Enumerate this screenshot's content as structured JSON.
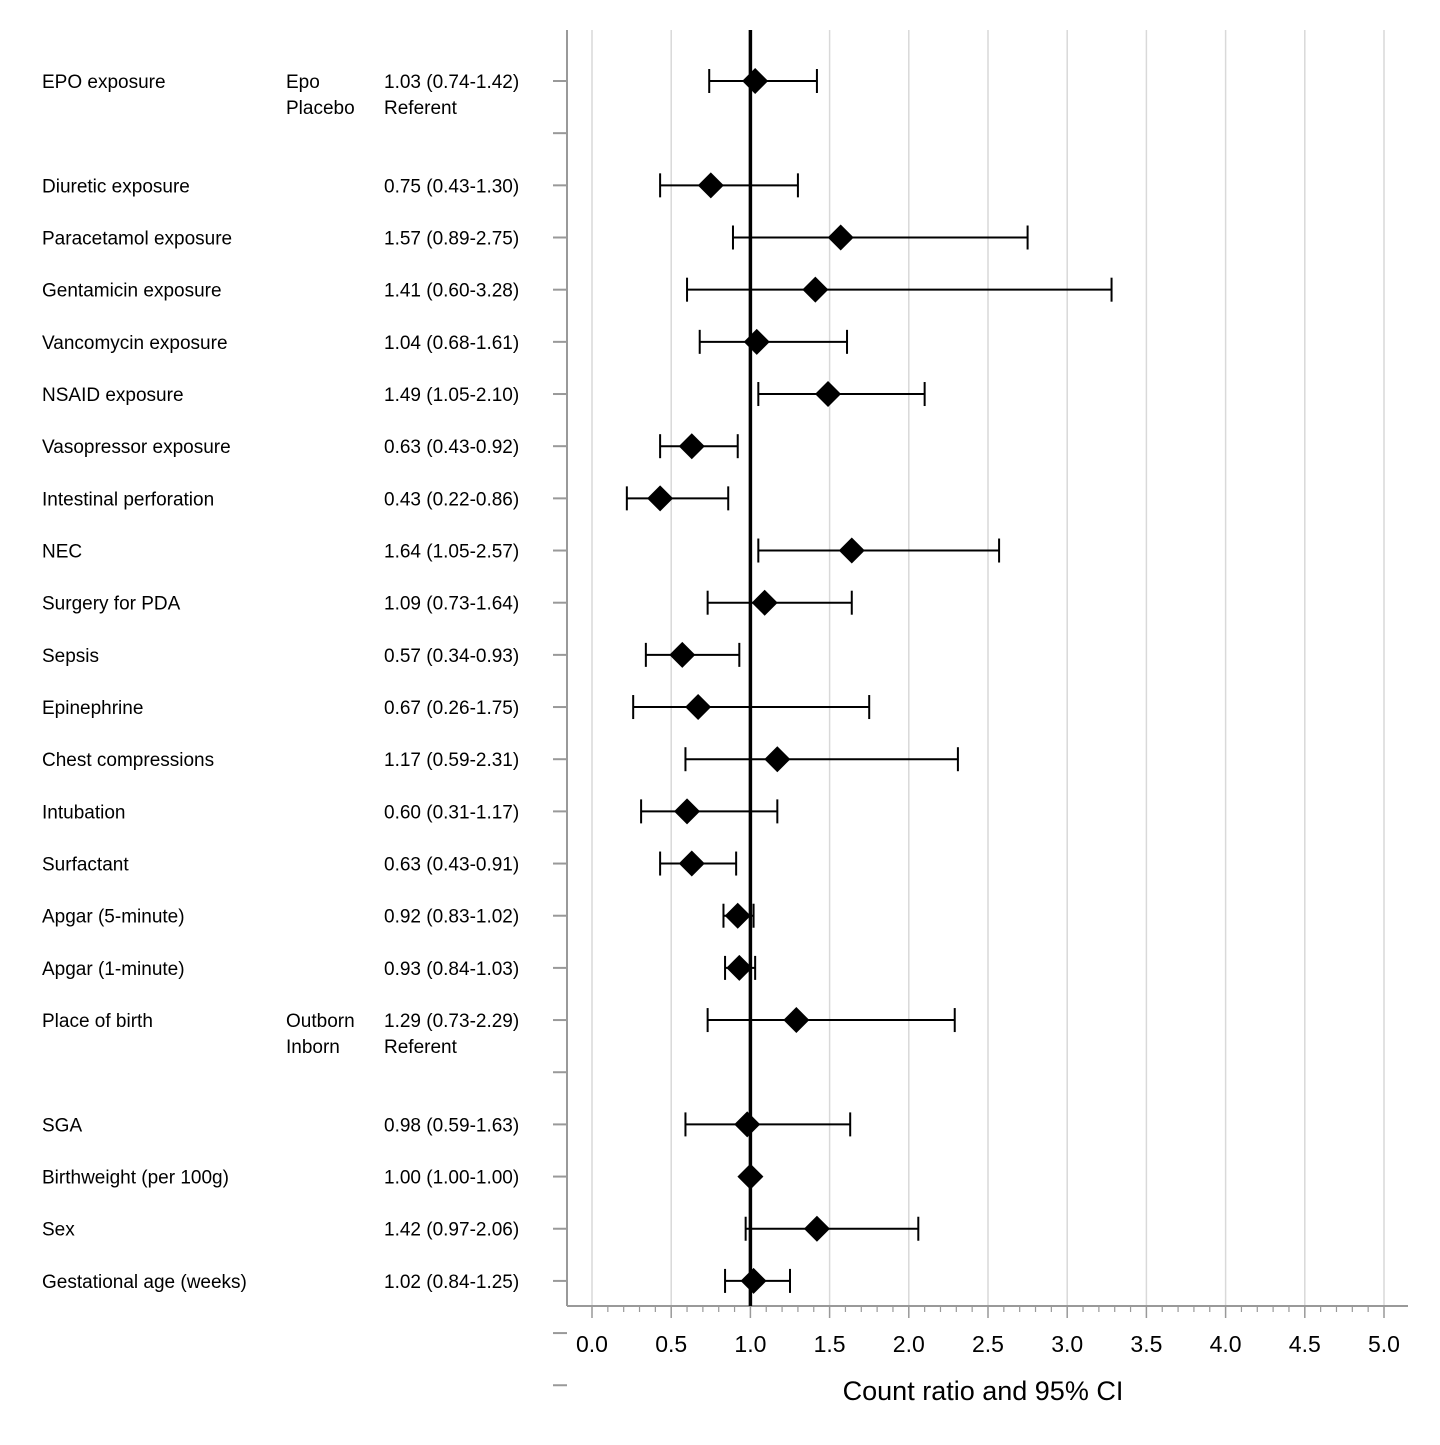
{
  "chart_data": {
    "type": "forest",
    "xlabel": "Count ratio and 95% CI",
    "xlim": [
      0,
      5
    ],
    "x_ticks": [
      "0.0",
      "0.5",
      "1.0",
      "1.5",
      "2.0",
      "2.5",
      "3.0",
      "3.5",
      "4.0",
      "4.5",
      "5.0"
    ],
    "reference_line": 1.0,
    "grid": "vertical",
    "rows": [
      {
        "label": "EPO exposure",
        "levels": [
          "Epo",
          "Placebo"
        ],
        "estimate_text": "1.03 (0.74-1.42)",
        "referent_text": "Referent",
        "value": 1.03,
        "lower": 0.74,
        "upper": 1.42
      },
      {
        "label": "Diuretic exposure",
        "estimate_text": "0.75 (0.43-1.30)",
        "value": 0.75,
        "lower": 0.43,
        "upper": 1.3
      },
      {
        "label": "Paracetamol exposure",
        "estimate_text": "1.57 (0.89-2.75)",
        "value": 1.57,
        "lower": 0.89,
        "upper": 2.75
      },
      {
        "label": "Gentamicin exposure",
        "estimate_text": "1.41 (0.60-3.28)",
        "value": 1.41,
        "lower": 0.6,
        "upper": 3.28
      },
      {
        "label": "Vancomycin exposure",
        "estimate_text": "1.04 (0.68-1.61)",
        "value": 1.04,
        "lower": 0.68,
        "upper": 1.61
      },
      {
        "label": "NSAID exposure",
        "estimate_text": "1.49 (1.05-2.10)",
        "value": 1.49,
        "lower": 1.05,
        "upper": 2.1
      },
      {
        "label": "Vasopressor exposure",
        "estimate_text": "0.63 (0.43-0.92)",
        "value": 0.63,
        "lower": 0.43,
        "upper": 0.92
      },
      {
        "label": "Intestinal perforation",
        "estimate_text": "0.43 (0.22-0.86)",
        "value": 0.43,
        "lower": 0.22,
        "upper": 0.86
      },
      {
        "label": "NEC",
        "estimate_text": "1.64 (1.05-2.57)",
        "value": 1.64,
        "lower": 1.05,
        "upper": 2.57
      },
      {
        "label": "Surgery for PDA",
        "estimate_text": "1.09 (0.73-1.64)",
        "value": 1.09,
        "lower": 0.73,
        "upper": 1.64
      },
      {
        "label": "Sepsis",
        "estimate_text": "0.57 (0.34-0.93)",
        "value": 0.57,
        "lower": 0.34,
        "upper": 0.93
      },
      {
        "label": "Epinephrine",
        "estimate_text": "0.67 (0.26-1.75)",
        "value": 0.67,
        "lower": 0.26,
        "upper": 1.75
      },
      {
        "label": "Chest compressions",
        "estimate_text": "1.17 (0.59-2.31)",
        "value": 1.17,
        "lower": 0.59,
        "upper": 2.31
      },
      {
        "label": "Intubation",
        "estimate_text": "0.60 (0.31-1.17)",
        "value": 0.6,
        "lower": 0.31,
        "upper": 1.17
      },
      {
        "label": "Surfactant",
        "estimate_text": "0.63 (0.43-0.91)",
        "value": 0.63,
        "lower": 0.43,
        "upper": 0.91
      },
      {
        "label": "Apgar (5-minute)",
        "estimate_text": "0.92 (0.83-1.02)",
        "value": 0.92,
        "lower": 0.83,
        "upper": 1.02
      },
      {
        "label": "Apgar (1-minute)",
        "estimate_text": "0.93 (0.84-1.03)",
        "value": 0.93,
        "lower": 0.84,
        "upper": 1.03
      },
      {
        "label": "Place of birth",
        "levels": [
          "Outborn",
          "Inborn"
        ],
        "estimate_text": "1.29 (0.73-2.29)",
        "referent_text": "Referent",
        "value": 1.29,
        "lower": 0.73,
        "upper": 2.29
      },
      {
        "label": "SGA",
        "estimate_text": "0.98 (0.59-1.63)",
        "value": 0.98,
        "lower": 0.59,
        "upper": 1.63
      },
      {
        "label": "Birthweight (per 100g)",
        "estimate_text": "1.00 (1.00-1.00)",
        "value": 1.0,
        "lower": 1.0,
        "upper": 1.0
      },
      {
        "label": "Sex",
        "estimate_text": "1.42 (0.97-2.06)",
        "value": 1.42,
        "lower": 0.97,
        "upper": 2.06
      },
      {
        "label": "Gestational age (weeks)",
        "estimate_text": "1.02 (0.84-1.25)",
        "value": 1.02,
        "lower": 0.84,
        "upper": 1.25
      }
    ],
    "colors": {
      "marker": "#000000",
      "reference_line": "#000000",
      "grid": "#d9d9d9",
      "axis": "#999999"
    }
  }
}
